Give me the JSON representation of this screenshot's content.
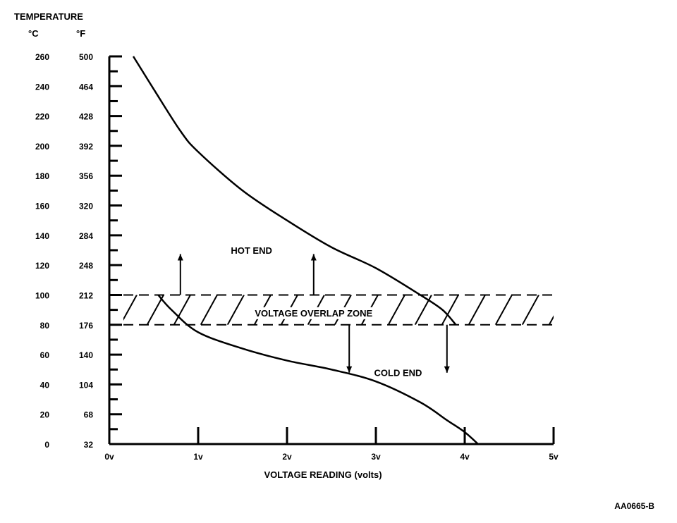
{
  "chart_data": {
    "type": "line",
    "title": "",
    "ylabel": "TEMPERATURE",
    "ylabel_units_c": "°C",
    "ylabel_units_f": "°F",
    "xlabel": "VOLTAGE READING (volts)",
    "xlim": [
      0,
      5
    ],
    "ylim": [
      0,
      260
    ],
    "x_ticks": [
      "0v",
      "1v",
      "2v",
      "3v",
      "4v",
      "5v"
    ],
    "y_ticks_c": [
      "260",
      "240",
      "220",
      "200",
      "180",
      "160",
      "140",
      "120",
      "100",
      "80",
      "60",
      "40",
      "20",
      "0"
    ],
    "y_ticks_f": [
      "500",
      "464",
      "428",
      "392",
      "356",
      "320",
      "284",
      "248",
      "212",
      "176",
      "140",
      "104",
      "68",
      "32"
    ],
    "overlap_zone": {
      "label": "VOLTAGE OVERLAP ZONE",
      "y_range": [
        80,
        100
      ]
    },
    "series": [
      {
        "name": "HOT END",
        "x": [
          0.27,
          0.5,
          0.8,
          1.0,
          1.5,
          2.0,
          2.5,
          3.0,
          3.5,
          3.75,
          3.9
        ],
        "y": [
          260,
          238,
          210,
          196,
          170,
          150,
          132,
          118,
          100,
          90,
          80
        ]
      },
      {
        "name": "COLD END",
        "x": [
          0.55,
          0.7,
          1.0,
          1.5,
          2.0,
          2.5,
          3.0,
          3.5,
          3.8,
          4.0,
          4.15
        ],
        "y": [
          100,
          90,
          75,
          64,
          56,
          50,
          42,
          28,
          16,
          8,
          0
        ]
      }
    ],
    "annotations": [
      {
        "text": "HOT END",
        "x": 1.6,
        "y": 130
      },
      {
        "text": "VOLTAGE OVERLAP ZONE",
        "x": 2.3,
        "y": 88
      },
      {
        "text": "COLD END",
        "x": 3.25,
        "y": 48
      }
    ],
    "figure_id": "AA0665-B"
  }
}
